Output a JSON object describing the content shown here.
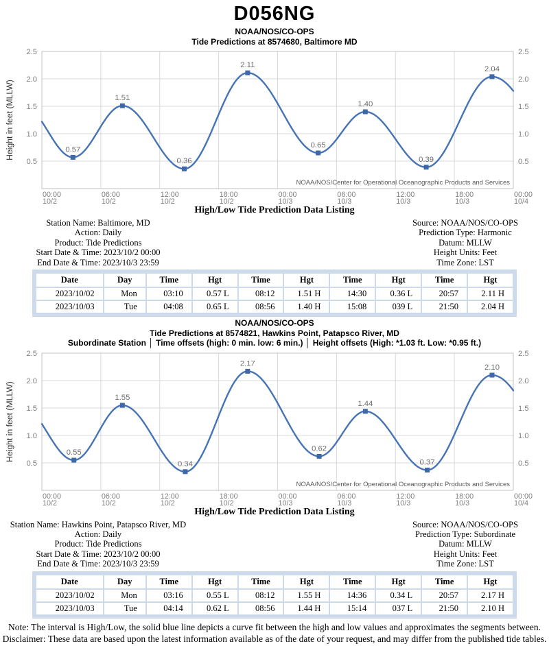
{
  "page_title": "D056NG",
  "chart_data": [
    {
      "type": "line",
      "title": "NOAA/NOS/CO-OPS",
      "subtitle": "Tide Predictions at 8574680, Baltimore MD",
      "subtitle2": "",
      "xlabel": "",
      "ylabel": "Height in feet (MLLW)",
      "ylim": [
        0,
        2.5
      ],
      "yticks": [
        0.5,
        1.0,
        1.5,
        2.0,
        2.5
      ],
      "x_hours_range": [
        0,
        48
      ],
      "grid": true,
      "legend": "none",
      "xticks": [
        {
          "hour": 0,
          "time": "00:00",
          "date": "10/2"
        },
        {
          "hour": 6,
          "time": "06:00",
          "date": "10/2"
        },
        {
          "hour": 12,
          "time": "12:00",
          "date": "10/2"
        },
        {
          "hour": 18,
          "time": "18:00",
          "date": "10/2"
        },
        {
          "hour": 24,
          "time": "00:00",
          "date": "10/3"
        },
        {
          "hour": 30,
          "time": "06:00",
          "date": "10/3"
        },
        {
          "hour": 36,
          "time": "12:00",
          "date": "10/3"
        },
        {
          "hour": 42,
          "time": "18:00",
          "date": "10/3"
        },
        {
          "hour": 48,
          "time": "00:00",
          "date": "10/4"
        }
      ],
      "points": [
        {
          "hour": 3.167,
          "value": 0.57,
          "label": "0.57",
          "kind": "L",
          "time": "03:10"
        },
        {
          "hour": 8.2,
          "value": 1.51,
          "label": "1.51",
          "kind": "H",
          "time": "08:12"
        },
        {
          "hour": 14.5,
          "value": 0.36,
          "label": "0.36",
          "kind": "L",
          "time": "14:30"
        },
        {
          "hour": 20.95,
          "value": 2.11,
          "label": "2.11",
          "kind": "H",
          "time": "20:57"
        },
        {
          "hour": 28.133,
          "value": 0.65,
          "label": "0.65",
          "kind": "L",
          "time": "04:08"
        },
        {
          "hour": 32.933,
          "value": 1.4,
          "label": "1.40",
          "kind": "H",
          "time": "08:56"
        },
        {
          "hour": 39.133,
          "value": 0.39,
          "label": "0.39",
          "kind": "L",
          "time": "15:08"
        },
        {
          "hour": 45.833,
          "value": 2.04,
          "label": "2.04",
          "kind": "H",
          "time": "21:50"
        }
      ],
      "curve_start_value": 1.22,
      "curve_end_value": 1.78,
      "watermark": "NOAA/NOS/Center for Operational Oceanographic Products and Services"
    },
    {
      "type": "line",
      "title": "NOAA/NOS/CO-OPS",
      "subtitle": "Tide Predictions at 8574821, Hawkins Point, Patapsco River, MD",
      "subtitle2": "Subordinate Station │ Time offsets (high: 0 min. low: 6 min.) │ Height offsets (High: *1.03 ft. Low: *0.95 ft.)",
      "xlabel": "",
      "ylabel": "Height in feet (MLLW)",
      "ylim": [
        0,
        2.5
      ],
      "yticks": [
        0.5,
        1.0,
        1.5,
        2.0,
        2.5
      ],
      "x_hours_range": [
        0,
        48
      ],
      "grid": true,
      "legend": "none",
      "xticks": [
        {
          "hour": 0,
          "time": "00:00",
          "date": "10/2"
        },
        {
          "hour": 6,
          "time": "06:00",
          "date": "10/2"
        },
        {
          "hour": 12,
          "time": "12:00",
          "date": "10/2"
        },
        {
          "hour": 18,
          "time": "18:00",
          "date": "10/2"
        },
        {
          "hour": 24,
          "time": "00:00",
          "date": "10/3"
        },
        {
          "hour": 30,
          "time": "06:00",
          "date": "10/3"
        },
        {
          "hour": 36,
          "time": "12:00",
          "date": "10/3"
        },
        {
          "hour": 42,
          "time": "18:00",
          "date": "10/3"
        },
        {
          "hour": 48,
          "time": "00:00",
          "date": "10/4"
        }
      ],
      "points": [
        {
          "hour": 3.267,
          "value": 0.55,
          "label": "0.55",
          "kind": "L",
          "time": "03:16"
        },
        {
          "hour": 8.2,
          "value": 1.55,
          "label": "1.55",
          "kind": "H",
          "time": "08:12"
        },
        {
          "hour": 14.6,
          "value": 0.34,
          "label": "0.34",
          "kind": "L",
          "time": "14:36"
        },
        {
          "hour": 20.95,
          "value": 2.17,
          "label": "2.17",
          "kind": "H",
          "time": "20:57"
        },
        {
          "hour": 28.233,
          "value": 0.62,
          "label": "0.62",
          "kind": "L",
          "time": "04:14"
        },
        {
          "hour": 32.933,
          "value": 1.44,
          "label": "1.44",
          "kind": "H",
          "time": "08:56"
        },
        {
          "hour": 39.233,
          "value": 0.37,
          "label": "0.37",
          "kind": "L",
          "time": "15:14"
        },
        {
          "hour": 45.833,
          "value": 2.1,
          "label": "2.10",
          "kind": "H",
          "time": "21:50"
        }
      ],
      "curve_start_value": 1.21,
      "curve_end_value": 1.82,
      "watermark": "NOAA/NOS/Center for Operational Oceanographic Products and Services"
    }
  ],
  "sections": [
    {
      "header": "High/Low Tide Prediction Data Listing",
      "info_left": [
        "Station Name: Baltimore, MD",
        "Action: Daily",
        "Product: Tide Predictions",
        "Start Date & Time: 2023/10/2 00:00",
        "End Date & Time: 2023/10/3 23:59"
      ],
      "info_right": [
        "Source: NOAA/NOS/CO-OPS",
        "Prediction Type: Harmonic",
        "Datum: MLLW",
        "Height Units: Feet",
        "Time Zone: LST"
      ],
      "table": {
        "columns": [
          "Date",
          "Day",
          "Time",
          "Hgt",
          "Time",
          "Hgt",
          "Time",
          "Hgt",
          "Time",
          "Hgt"
        ],
        "rows": [
          [
            "2023/10/02",
            "Mon",
            "03:10",
            "0.57 L",
            "08:12",
            "1.51 H",
            "14:30",
            "0.36 L",
            "20:57",
            "2.11 H"
          ],
          [
            "2023/10/03",
            "Tue",
            "04:08",
            "0.65 L",
            "08:56",
            "1.40 H",
            "15:08",
            "039 L",
            "21:50",
            "2.04 H"
          ]
        ]
      }
    },
    {
      "header": "High/Low Tide Prediction Data Listing",
      "info_left": [
        "Station Name: Hawkins Point, Patapsco River, MD",
        "Action: Daily",
        "Product: Tide Predictions",
        "Start Date & Time: 2023/10/2 00:00",
        "End Date & Time: 2023/10/3 23:59"
      ],
      "info_right": [
        "Source: NOAA/NOS/CO-OPS",
        "Prediction Type: Subordinate",
        "Datum: MLLW",
        "Height Units: Feet",
        "Time Zone: LST"
      ],
      "table": {
        "columns": [
          "Date",
          "Day",
          "Time",
          "Hgt",
          "Time",
          "Hgt",
          "Time",
          "Hgt",
          "Time",
          "Hgt"
        ],
        "rows": [
          [
            "2023/10/02",
            "Mon",
            "03:16",
            "0.55 L",
            "08:12",
            "1.55 H",
            "14:36",
            "0.34 L",
            "20:57",
            "2.17 H"
          ],
          [
            "2023/10/03",
            "Tue",
            "04:14",
            "0.62 L",
            "08:56",
            "1.44 H",
            "15:14",
            "037 L",
            "21:50",
            "2.10 H"
          ]
        ]
      }
    }
  ],
  "notes": [
    "Note: The interval is High/Low, the solid blue line depicts a curve fit between the high and low values and approximates the segments between.",
    "Disclaimer: These data are based upon the latest information available as of the date of your request, and may differ from the published tide tables."
  ],
  "colors": {
    "curve": "#4673b4",
    "marker": "#3e68a8",
    "grid": "#d9d9d9",
    "plot_border": "#c0c0c0",
    "tick_label": "#7f7f7f",
    "point_label": "#6e6e6e",
    "axis_title": "#333333",
    "watermark": "#595959",
    "table_frame": "#ccdaec"
  }
}
